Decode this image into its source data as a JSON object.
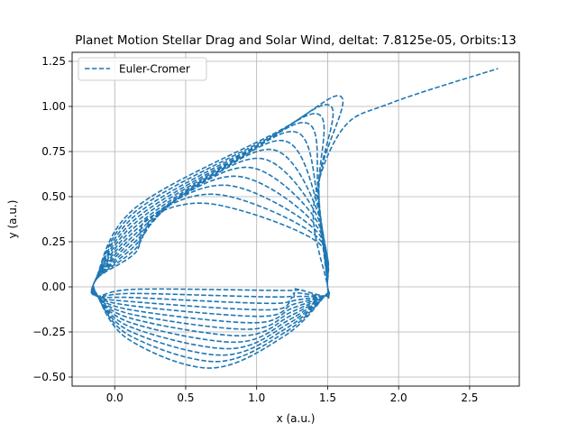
{
  "chart_data": {
    "type": "line",
    "title": "Planet Motion Stellar Drag and Solar Wind, deltat: 7.8125e-05, Orbits:13",
    "xlabel": "x (a.u.)",
    "ylabel": "y (a.u.)",
    "xlim": [
      -0.3,
      2.85
    ],
    "ylim": [
      -0.55,
      1.3
    ],
    "xticks": [
      0.0,
      0.5,
      1.0,
      1.5,
      2.0,
      2.5
    ],
    "xtick_labels": [
      "0.0",
      "0.5",
      "1.0",
      "1.5",
      "2.0",
      "2.5"
    ],
    "yticks": [
      -0.5,
      -0.25,
      0.0,
      0.25,
      0.5,
      0.75,
      1.0,
      1.25
    ],
    "ytick_labels": [
      "−0.50",
      "−0.25",
      "0.00",
      "0.25",
      "0.50",
      "0.75",
      "1.00",
      "1.25"
    ],
    "grid": true,
    "legend_position": "upper-left",
    "series": [
      {
        "name": "Euler-Cromer",
        "color": "#1f77b4",
        "line_style": "dashed",
        "orbits": 13,
        "start_point": [
          1.5,
          0.0
        ],
        "end_point": [
          2.7,
          1.21
        ],
        "escape_departure": [
          1.6,
          0.87
        ],
        "min_x": -0.13,
        "max_x": 1.65,
        "min_y": -0.45,
        "max_y": 1.05
      }
    ]
  }
}
